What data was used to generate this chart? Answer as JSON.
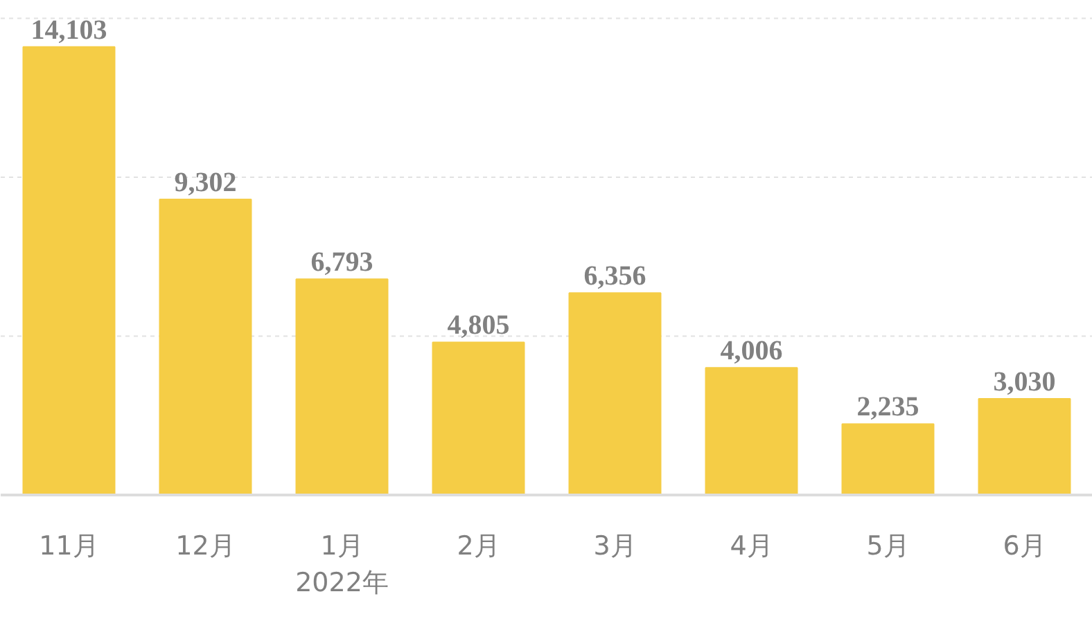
{
  "chart_data": {
    "type": "bar",
    "categories": [
      "11月",
      "12月",
      "1月\n2022年",
      "2月",
      "3月",
      "4月",
      "5月",
      "6月"
    ],
    "values": [
      14103,
      9302,
      6793,
      4805,
      6356,
      4006,
      2235,
      3030
    ],
    "value_labels": [
      "14,103",
      "9,302",
      "6,793",
      "4,805",
      "6,356",
      "4,006",
      "2,235",
      "3,030"
    ],
    "color": "#f5cd46",
    "tick_labels": "x",
    "ref_lines": [
      {
        "axis": "y",
        "value": 5000,
        "color": "#e2e2e2",
        "line_style": "dashed"
      },
      {
        "axis": "y",
        "value": 10000,
        "color": "#e2e2e2",
        "line_style": "dashed"
      },
      {
        "axis": "y",
        "value": 15000,
        "color": "#e2e2e2",
        "line_style": "dashed"
      }
    ]
  }
}
